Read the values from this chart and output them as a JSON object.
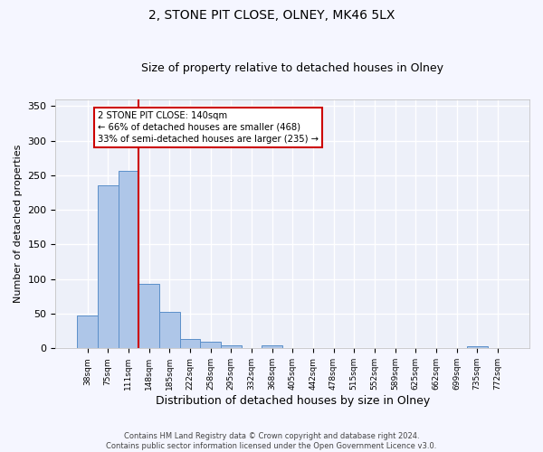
{
  "title": "2, STONE PIT CLOSE, OLNEY, MK46 5LX",
  "subtitle": "Size of property relative to detached houses in Olney",
  "xlabel": "Distribution of detached houses by size in Olney",
  "ylabel": "Number of detached properties",
  "categories": [
    "38sqm",
    "75sqm",
    "111sqm",
    "148sqm",
    "185sqm",
    "222sqm",
    "258sqm",
    "295sqm",
    "332sqm",
    "368sqm",
    "405sqm",
    "442sqm",
    "478sqm",
    "515sqm",
    "552sqm",
    "589sqm",
    "625sqm",
    "662sqm",
    "699sqm",
    "735sqm",
    "772sqm"
  ],
  "values": [
    48,
    235,
    256,
    93,
    53,
    13,
    9,
    4,
    0,
    5,
    0,
    0,
    0,
    0,
    0,
    0,
    0,
    0,
    0,
    3,
    0
  ],
  "bar_color": "#aec6e8",
  "bar_edge_color": "#5b8fc9",
  "vline_x_index": 3,
  "vline_color": "#cc0000",
  "annotation_text": "2 STONE PIT CLOSE: 140sqm\n← 66% of detached houses are smaller (468)\n33% of semi-detached houses are larger (235) →",
  "annotation_box_color": "#ffffff",
  "annotation_box_edge_color": "#cc0000",
  "ylim": [
    0,
    360
  ],
  "yticks": [
    0,
    50,
    100,
    150,
    200,
    250,
    300,
    350
  ],
  "background_color": "#edf0f9",
  "grid_color": "#ffffff",
  "footer_text": "Contains HM Land Registry data © Crown copyright and database right 2024.\nContains public sector information licensed under the Open Government Licence v3.0.",
  "title_fontsize": 10,
  "subtitle_fontsize": 9,
  "xlabel_fontsize": 9,
  "ylabel_fontsize": 8,
  "fig_facecolor": "#f5f6ff"
}
